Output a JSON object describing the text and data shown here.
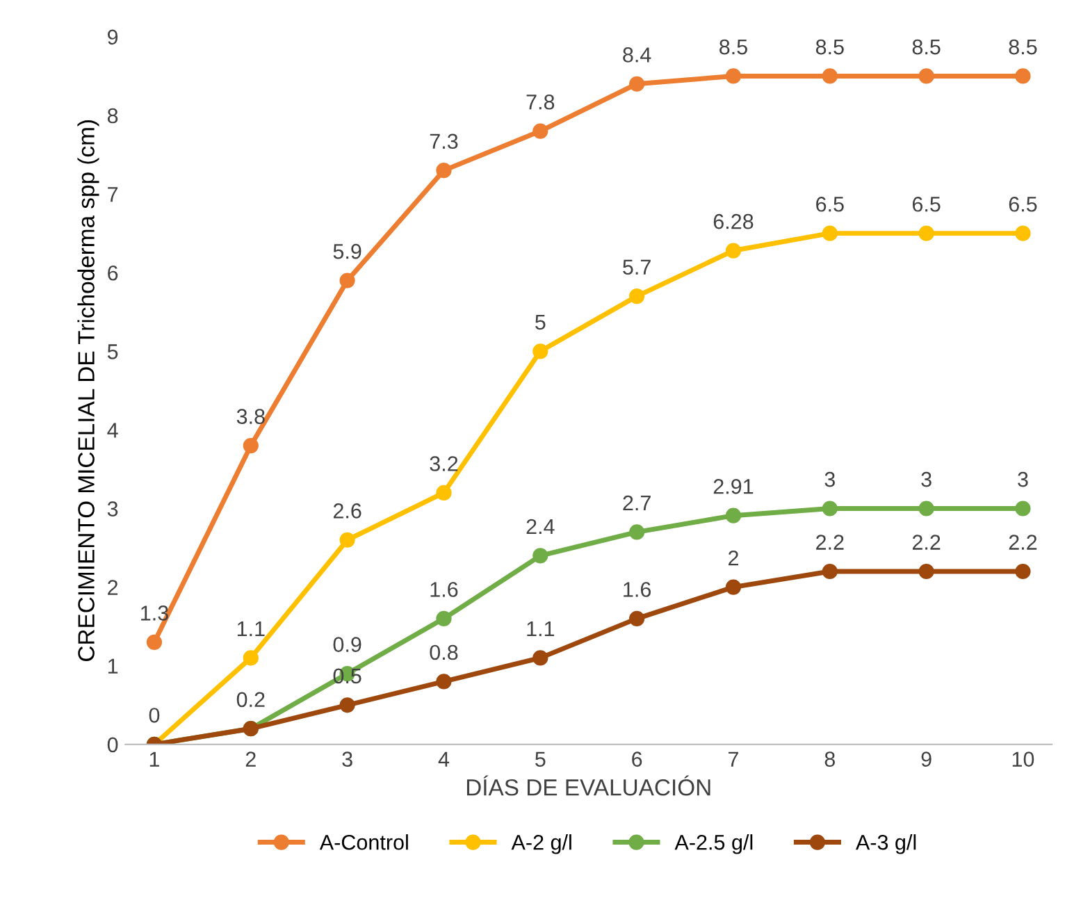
{
  "chart_data": {
    "type": "line",
    "xlabel": "DÍAS DE EVALUACIÓN",
    "ylabel": "CRECIMIENTO MICELIAL DE Trichoderma spp (cm)",
    "categories": [
      "1",
      "2",
      "3",
      "4",
      "5",
      "6",
      "7",
      "8",
      "9",
      "10"
    ],
    "series": [
      {
        "name": "A-Control",
        "color": "#ed7d31",
        "values": [
          1.3,
          3.8,
          5.9,
          7.3,
          7.8,
          8.4,
          8.5,
          8.5,
          8.5,
          8.5
        ],
        "value_labels": [
          "1.3",
          "3.8",
          "5.9",
          "7.3",
          "7.8",
          "8.4",
          "8.5",
          "8.5",
          "8.5",
          "8.5"
        ]
      },
      {
        "name": "A-2 g/l",
        "color": "#ffc000",
        "values": [
          0,
          1.1,
          2.6,
          3.2,
          5,
          5.7,
          6.28,
          6.5,
          6.5,
          6.5
        ],
        "value_labels": [
          "0",
          "1.1",
          "2.6",
          "3.2",
          "5",
          "5.7",
          "6.28",
          "6.5",
          "6.5",
          "6.5"
        ]
      },
      {
        "name": "A-2.5 g/l",
        "color": "#70ad47",
        "values": [
          0,
          0.2,
          0.9,
          1.6,
          2.4,
          2.7,
          2.91,
          3,
          3,
          3
        ],
        "value_labels": [
          null,
          "0.2",
          "0.9",
          "1.6",
          "2.4",
          "2.7",
          "2.91",
          "3",
          "3",
          "3"
        ]
      },
      {
        "name": "A-3 g/l",
        "color": "#9e480e",
        "values": [
          0,
          0.2,
          0.5,
          0.8,
          1.1,
          1.6,
          2,
          2.2,
          2.2,
          2.2
        ],
        "value_labels": [
          null,
          null,
          "0.5",
          "0.8",
          "1.1",
          "1.6",
          "2",
          "2.2",
          "2.2",
          "2.2"
        ]
      }
    ],
    "ylim": [
      0,
      9
    ],
    "yticks": [
      0,
      1,
      2,
      3,
      4,
      5,
      6,
      7,
      8,
      9
    ],
    "legend": "bottom",
    "marker": "circle",
    "line_style": "solid",
    "grid": false
  }
}
